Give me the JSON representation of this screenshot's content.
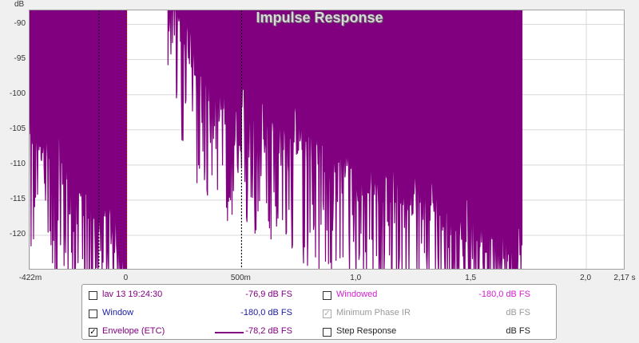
{
  "chart_data": {
    "type": "line",
    "title": "Impulse Response",
    "y_unit": "dB",
    "ylim": [
      -125,
      -88
    ],
    "y_ticks": [
      "-90",
      "-95",
      "-100",
      "-105",
      "-110",
      "-115",
      "-120"
    ],
    "y_tick_values": [
      -90,
      -95,
      -100,
      -105,
      -110,
      -115,
      -120
    ],
    "xlim": [
      -0.422,
      2.17
    ],
    "x_ticks": [
      "-422m",
      "0",
      "500m",
      "1,0",
      "1,5",
      "2,0",
      "2,17 s"
    ],
    "x_tick_values": [
      -0.422,
      0,
      0.5,
      1.0,
      1.5,
      2.0,
      2.17
    ],
    "markers": [
      {
        "x": -0.12,
        "style": "dashed",
        "color": "#000000"
      },
      {
        "x": 0.0,
        "style": "dashed",
        "color": "#cc0000"
      },
      {
        "x": 0.5,
        "style": "dashed",
        "color": "#000000"
      }
    ],
    "series": [
      {
        "name": "Envelope (ETC)",
        "color": "#800080",
        "segments": [
          {
            "x_start": -0.422,
            "x_end": 0.0,
            "top": -88,
            "floor": [
              -108,
              -125
            ]
          },
          {
            "x_start": 0.18,
            "x_end": 0.5,
            "top": -88,
            "floor": [
              -90,
              -110
            ]
          },
          {
            "x_start": 0.5,
            "x_end": 1.72,
            "top": -88,
            "floor": [
              -105,
              -125
            ]
          }
        ]
      }
    ]
  },
  "legend": {
    "rows": [
      {
        "label": "lav 13 19:24:30",
        "value": "-76,9 dB FS",
        "checked": false,
        "label_color": "#800080",
        "value_color": "#800080"
      },
      {
        "label": "Window",
        "value": "-180,0 dB FS",
        "checked": false,
        "label_color": "#1a1aa0",
        "value_color": "#1a1aa0"
      },
      {
        "label": "Envelope (ETC)",
        "value": "-78,2 dB FS",
        "checked": true,
        "label_color": "#800080",
        "value_color": "#800080",
        "swatch": "#800080"
      },
      {
        "label": "Windowed",
        "value": "-180,0 dB FS",
        "checked": false,
        "label_color": "#d020d0",
        "value_color": "#d020d0"
      },
      {
        "label": "Minimum Phase IR",
        "value": "dB FS",
        "checked": true,
        "disabled": true,
        "label_color": "#999999",
        "value_color": "#999999"
      },
      {
        "label": "Step Response",
        "value": "dB FS",
        "checked": false,
        "label_color": "#222222",
        "value_color": "#222222"
      }
    ]
  }
}
